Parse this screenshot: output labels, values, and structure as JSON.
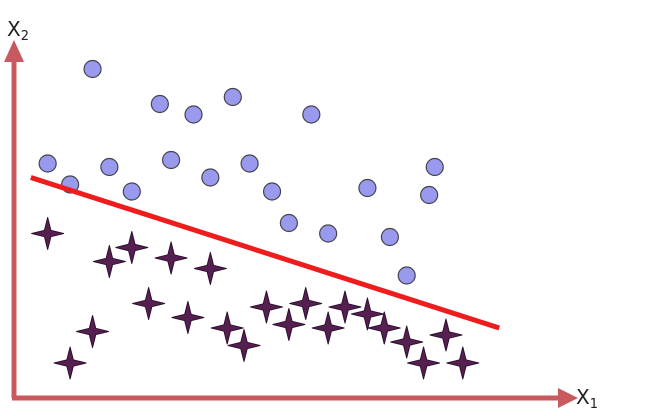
{
  "chart_data": {
    "type": "scatter",
    "title": "",
    "xlabel": "X",
    "xlabel_sub": "1",
    "ylabel": "X",
    "ylabel_sub": "2",
    "xlim": [
      0,
      100
    ],
    "ylim": [
      0,
      100
    ],
    "grid": false,
    "colors": {
      "axis": "#c85a5f",
      "circle_fill": "#9999ee",
      "circle_stroke": "#44444f",
      "star_fill": "#55204f",
      "star_stroke": "#2e1030",
      "boundary": "#ee1c1c"
    },
    "series": [
      {
        "marker": "circle",
        "points": [
          {
            "x": 14,
            "y": 94
          },
          {
            "x": 26,
            "y": 84
          },
          {
            "x": 32,
            "y": 81
          },
          {
            "x": 39,
            "y": 86
          },
          {
            "x": 53,
            "y": 81
          },
          {
            "x": 6,
            "y": 67
          },
          {
            "x": 17,
            "y": 66
          },
          {
            "x": 28,
            "y": 68
          },
          {
            "x": 42,
            "y": 67
          },
          {
            "x": 10,
            "y": 61
          },
          {
            "x": 21,
            "y": 59
          },
          {
            "x": 35,
            "y": 63
          },
          {
            "x": 46,
            "y": 59
          },
          {
            "x": 75,
            "y": 66
          },
          {
            "x": 63,
            "y": 60
          },
          {
            "x": 74,
            "y": 58
          },
          {
            "x": 49,
            "y": 50
          },
          {
            "x": 56,
            "y": 47
          },
          {
            "x": 67,
            "y": 46
          },
          {
            "x": 70,
            "y": 35
          }
        ]
      },
      {
        "marker": "star",
        "points": [
          {
            "x": 6,
            "y": 47
          },
          {
            "x": 21,
            "y": 43
          },
          {
            "x": 17,
            "y": 39
          },
          {
            "x": 28,
            "y": 40
          },
          {
            "x": 35,
            "y": 37
          },
          {
            "x": 24,
            "y": 27
          },
          {
            "x": 31,
            "y": 23
          },
          {
            "x": 14,
            "y": 19
          },
          {
            "x": 10,
            "y": 10
          },
          {
            "x": 38,
            "y": 20
          },
          {
            "x": 41,
            "y": 15
          },
          {
            "x": 45,
            "y": 26
          },
          {
            "x": 49,
            "y": 21
          },
          {
            "x": 52,
            "y": 27
          },
          {
            "x": 56,
            "y": 20
          },
          {
            "x": 59,
            "y": 26
          },
          {
            "x": 63,
            "y": 24
          },
          {
            "x": 66,
            "y": 20
          },
          {
            "x": 70,
            "y": 16
          },
          {
            "x": 73,
            "y": 10
          },
          {
            "x": 77,
            "y": 18
          },
          {
            "x": 80,
            "y": 10
          }
        ]
      }
    ],
    "boundary": {
      "x": [
        3,
        86.5
      ],
      "y": [
        63,
        20
      ]
    }
  }
}
